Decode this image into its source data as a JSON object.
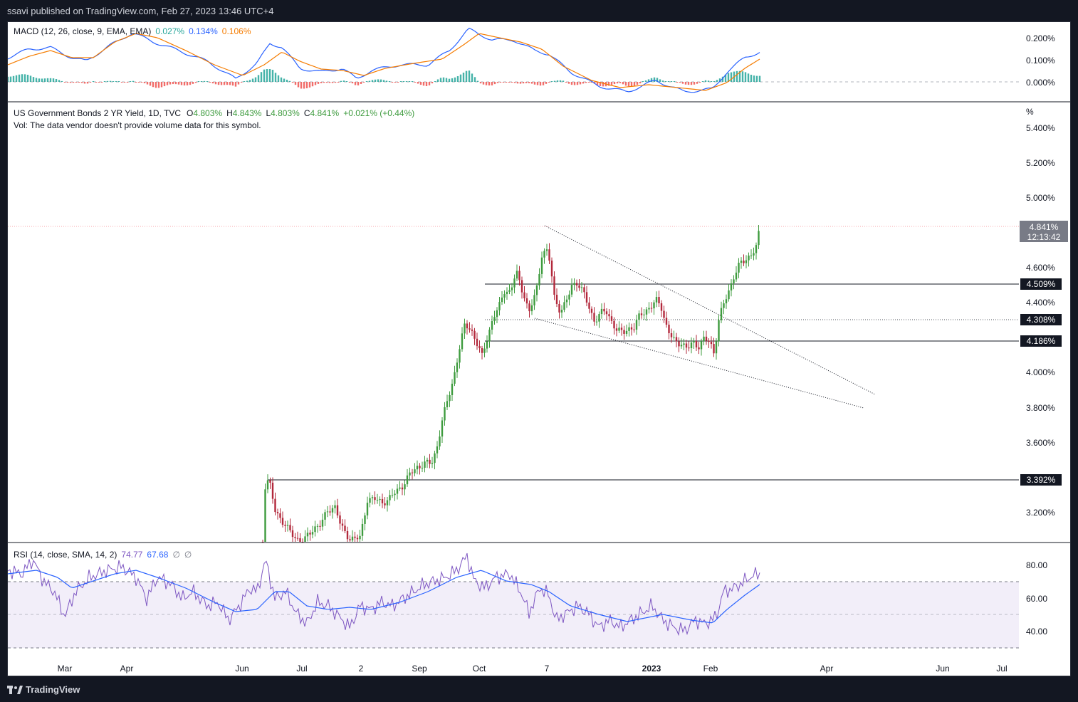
{
  "header": {
    "publisher": "ssavi published on TradingView.com, Feb 27, 2023 13:46 UTC+4"
  },
  "footer": {
    "brand": "TradingView"
  },
  "colors": {
    "up": "#26a69a",
    "up_candle": "#3e9b3e",
    "down_candle": "#b2283b",
    "macd": "#2962ff",
    "signal": "#f57c00",
    "rsi": "#7e57c2",
    "rsi_ma": "#2962ff",
    "hist_up": "#26a69a",
    "hist_down": "#ef5350"
  },
  "macd": {
    "title": "MACD (12, 26, close, 9, EMA, EMA)",
    "v1": "0.027%",
    "v2": "0.134%",
    "v3": "0.106%",
    "axis": [
      "0.200%",
      "0.100%",
      "0.000%"
    ]
  },
  "price": {
    "title": "US Government Bonds 2 YR Yield, 1D, TVC",
    "o_label": "O",
    "o": "4.803%",
    "h_label": "H",
    "h": "4.843%",
    "l_label": "L",
    "l": "4.803%",
    "c_label": "C",
    "c": "4.841%",
    "change": "+0.021% (+0.44%)",
    "vol_note": "Vol: The data vendor doesn't provide volume data for this symbol.",
    "unit": "%",
    "axis": [
      "5.400%",
      "5.200%",
      "5.000%",
      "4.600%",
      "4.400%",
      "4.000%",
      "3.800%",
      "3.600%",
      "3.200%"
    ],
    "current_price": "4.841%",
    "countdown": "12:13:42",
    "levels": [
      {
        "label": "4.509%",
        "value": 4.509
      },
      {
        "label": "4.308%",
        "value": 4.308
      },
      {
        "label": "4.186%",
        "value": 4.186
      },
      {
        "label": "3.392%",
        "value": 3.392
      }
    ]
  },
  "rsi": {
    "title": "RSI (14, close, SMA, 14, 2)",
    "v1": "74.77",
    "v2": "67.68",
    "v3": "∅",
    "v4": "∅",
    "axis": [
      "80.00",
      "60.00",
      "40.00"
    ]
  },
  "time_axis": [
    "Mar",
    "Apr",
    "Jun",
    "Jul",
    "2",
    "Sep",
    "Oct",
    "7",
    "2023",
    "Feb",
    "Apr",
    "Jun",
    "Jul"
  ]
}
